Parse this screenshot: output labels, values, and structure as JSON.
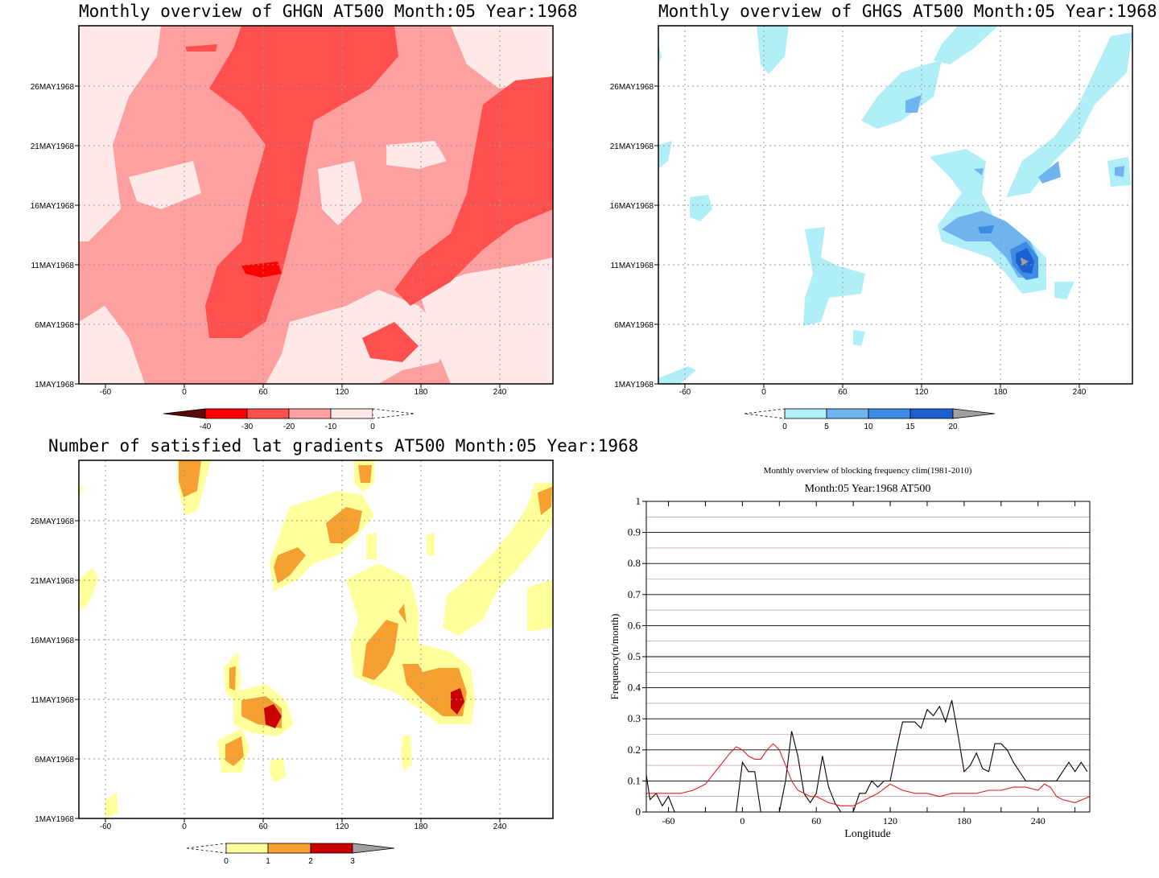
{
  "panels": {
    "ghgn": {
      "title": "Monthly overview of GHGN AT500 Month:05 Year:1968"
    },
    "ghgs": {
      "title": "Monthly overview of GHGS AT500 Month:05 Year:1968"
    },
    "lat": {
      "title": "Number of satisfied lat gradients AT500 Month:05 Year:1968"
    }
  },
  "shared_axes": {
    "x_ticks": [
      "-60",
      "0",
      "60",
      "120",
      "180",
      "240"
    ],
    "y_ticks": [
      "1MAY1968",
      "6MAY1968",
      "11MAY1968",
      "16MAY1968",
      "21MAY1968",
      "26MAY1968"
    ]
  },
  "colorbars": {
    "ghgn": {
      "labels": [
        "-40",
        "-30",
        "-20",
        "-10",
        "0"
      ],
      "colors": [
        "#5a0a0a",
        "#ff0000",
        "#ff5050",
        "#ffa0a0",
        "#ffe8e8",
        "#ffffff"
      ]
    },
    "ghgs": {
      "labels": [
        "0",
        "5",
        "10",
        "15",
        "20"
      ],
      "colors": [
        "#ffffff",
        "#b0eef8",
        "#70b4ef",
        "#3c8ce6",
        "#1c5fd0",
        "#a0a0a0"
      ]
    },
    "lat": {
      "labels": [
        "0",
        "1",
        "2",
        "3"
      ],
      "colors": [
        "#ffffff",
        "#ffff9c",
        "#f5a030",
        "#c80000",
        "#a0a0a0"
      ]
    }
  },
  "line_panel": {
    "title_line1": "Monthly overview of blocking frequency clim(1981-2010)",
    "title_line2": "Month:05 Year:1968  AT500",
    "ylabel": "Frequency(n/month)",
    "xlabel": "Longitude",
    "y_ticks": [
      "0",
      "0.1",
      "0.2",
      "0.3",
      "0.4",
      "0.5",
      "0.6",
      "0.7",
      "0.8",
      "0.9",
      "1"
    ],
    "x_ticks": [
      "-60",
      "0",
      "60",
      "120",
      "180",
      "240"
    ]
  },
  "chart_data": [
    {
      "type": "heatmap",
      "title": "Monthly overview of GHGN AT500 Month:05 Year:1968",
      "x": "longitude (-78 to 282)",
      "y": "day (1MAY1968 to 31MAY1968)",
      "levels": [
        -40,
        -30,
        -20,
        -10,
        0
      ],
      "note_min_value_region": "about -30 near lon 60, 11MAY1968"
    },
    {
      "type": "heatmap",
      "title": "Monthly overview of GHGS AT500 Month:05 Year:1968",
      "x": "longitude (-78 to 282)",
      "y": "day (1MAY1968 to 31MAY1968)",
      "levels": [
        0,
        5,
        10,
        15,
        20
      ],
      "note_max_value_region": "above 20 near lon 200, 11MAY1968"
    },
    {
      "type": "heatmap",
      "title": "Number of satisfied lat gradients AT500 Month:05 Year:1968",
      "x": "longitude (-78 to 282)",
      "y": "day (1MAY1968 to 31MAY1968)",
      "levels": [
        0,
        1,
        2,
        3
      ]
    },
    {
      "type": "line",
      "title": "Monthly overview of blocking frequency clim(1981-2010)",
      "subtitle": "Month:05 Year:1968  AT500",
      "xlabel": "Longitude",
      "ylabel": "Frequency(n/month)",
      "xlim": [
        -78,
        282
      ],
      "ylim": [
        0,
        1
      ],
      "grid": true,
      "series": [
        {
          "color": "#000000",
          "x": [
            -78,
            -75,
            -70,
            -65,
            -60,
            -55,
            -50,
            -45,
            -40,
            -35,
            -30,
            -25,
            -20,
            -15,
            -10,
            -5,
            0,
            5,
            10,
            15,
            20,
            25,
            30,
            35,
            40,
            45,
            50,
            55,
            60,
            65,
            70,
            75,
            80,
            85,
            90,
            95,
            100,
            105,
            110,
            115,
            120,
            125,
            130,
            135,
            140,
            145,
            150,
            155,
            160,
            165,
            170,
            175,
            180,
            185,
            190,
            195,
            200,
            205,
            210,
            215,
            220,
            225,
            230,
            235,
            240,
            245,
            250,
            255,
            260,
            265,
            270,
            275,
            280
          ],
          "y": [
            0.12,
            0.04,
            0.06,
            0.02,
            0.05,
            0.0,
            0.0,
            0.0,
            0.0,
            0.0,
            0.0,
            0.0,
            0.0,
            0.0,
            0.0,
            0.0,
            0.16,
            0.13,
            0.13,
            0.0,
            0.0,
            0.0,
            0.0,
            0.1,
            0.26,
            0.18,
            0.06,
            0.03,
            0.06,
            0.18,
            0.08,
            0.03,
            0.0,
            0.0,
            0.0,
            0.06,
            0.06,
            0.1,
            0.08,
            0.1,
            0.1,
            0.2,
            0.29,
            0.29,
            0.29,
            0.27,
            0.33,
            0.31,
            0.34,
            0.29,
            0.36,
            0.25,
            0.13,
            0.15,
            0.19,
            0.14,
            0.13,
            0.22,
            0.22,
            0.2,
            0.16,
            0.13,
            0.1,
            0.1,
            0.1,
            0.1,
            0.1,
            0.1,
            0.13,
            0.16,
            0.13,
            0.16,
            0.13
          ]
        },
        {
          "color": "#e02020",
          "x": [
            -78,
            -70,
            -60,
            -50,
            -40,
            -30,
            -20,
            -10,
            -5,
            0,
            5,
            10,
            15,
            20,
            25,
            30,
            35,
            40,
            45,
            50,
            55,
            60,
            70,
            80,
            90,
            100,
            110,
            120,
            130,
            140,
            150,
            160,
            170,
            180,
            190,
            200,
            210,
            220,
            230,
            240,
            245,
            250,
            255,
            260,
            270,
            282
          ],
          "y": [
            0.06,
            0.06,
            0.06,
            0.06,
            0.07,
            0.09,
            0.14,
            0.19,
            0.21,
            0.2,
            0.18,
            0.17,
            0.17,
            0.2,
            0.22,
            0.2,
            0.15,
            0.1,
            0.07,
            0.06,
            0.05,
            0.05,
            0.03,
            0.02,
            0.02,
            0.04,
            0.06,
            0.09,
            0.07,
            0.06,
            0.06,
            0.05,
            0.06,
            0.06,
            0.06,
            0.07,
            0.07,
            0.08,
            0.08,
            0.07,
            0.09,
            0.08,
            0.05,
            0.04,
            0.03,
            0.05
          ]
        }
      ]
    }
  ]
}
